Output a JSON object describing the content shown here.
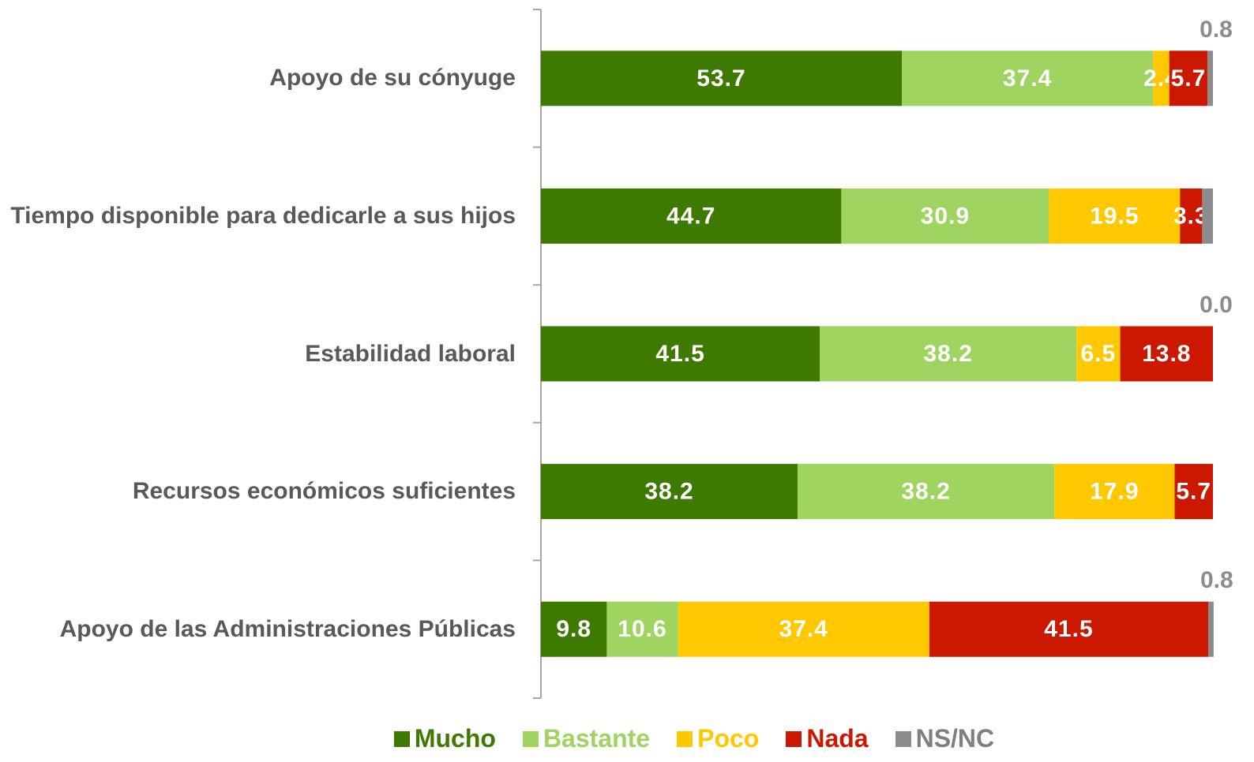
{
  "chart_data": {
    "type": "bar",
    "orientation": "horizontal",
    "stacked": true,
    "legend": "bottom",
    "categories": [
      "Apoyo de su cónyuge",
      "Tiempo disponible para dedicarle a sus hijos",
      "Estabilidad laboral",
      "Recursos económicos suficientes",
      "Apoyo de las Administraciones Públicas"
    ],
    "xlim": [
      0,
      100
    ],
    "series": [
      {
        "name": "Mucho",
        "color": "#3f7a00",
        "values": [
          53.7,
          44.7,
          41.5,
          38.2,
          9.8
        ]
      },
      {
        "name": "Bastante",
        "color": "#9ed45f",
        "values": [
          37.4,
          30.9,
          38.2,
          38.2,
          10.6
        ]
      },
      {
        "name": "Poco",
        "color": "#ffc800",
        "values": [
          2.4,
          19.5,
          6.5,
          17.9,
          37.4
        ]
      },
      {
        "name": "Nada",
        "color": "#cc1800",
        "values": [
          5.7,
          3.3,
          13.8,
          5.7,
          41.5
        ]
      },
      {
        "name": "NS/NC",
        "color": "#8c8c8c",
        "values": [
          0.8,
          1.6,
          0,
          0,
          0.8
        ],
        "value_labels": [
          "0.8",
          null,
          "0.0",
          null,
          "0.8"
        ]
      }
    ]
  }
}
